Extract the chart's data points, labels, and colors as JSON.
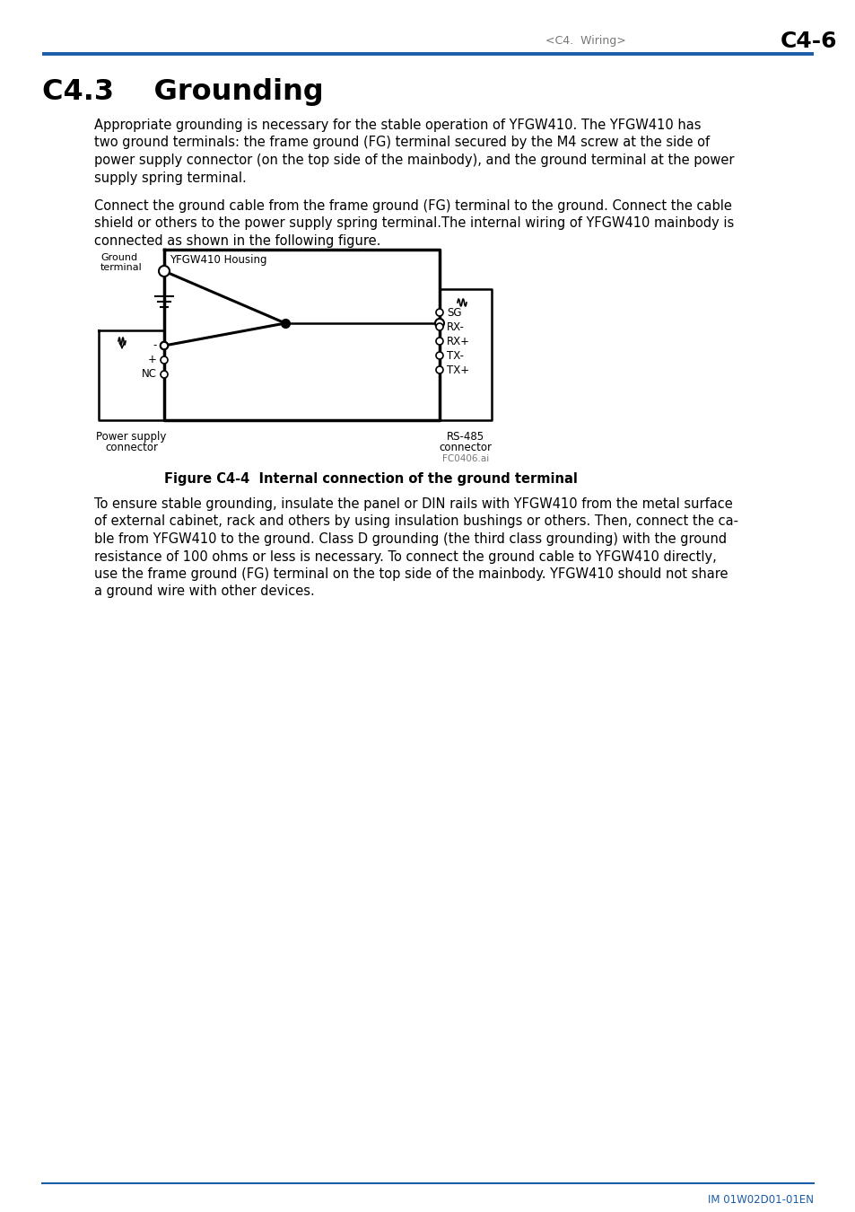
{
  "page_header_left": "<C4.  Wiring>",
  "page_header_right": "C4-6",
  "header_line_color": "#1a5ca8",
  "section_title": "C4.3    Grounding",
  "para1_lines": [
    "Appropriate grounding is necessary for the stable operation of YFGW410. The YFGW410 has",
    "two ground terminals: the frame ground (FG) terminal secured by the M4 screw at the side of",
    "power supply connector (on the top side of the mainbody), and the ground terminal at the power",
    "supply spring terminal."
  ],
  "para2_lines": [
    "Connect the ground cable from the frame ground (FG) terminal to the ground. Connect the cable",
    "shield or others to the power supply spring terminal.The internal wiring of YFGW410 mainbody is",
    "connected as shown in the following figure."
  ],
  "fig_caption": "Figure C4-4  Internal connection of the ground terminal",
  "para3_lines": [
    "To ensure stable grounding, insulate the panel or DIN rails with YFGW410 from the metal surface",
    "of external cabinet, rack and others by using insulation bushings or others. Then, connect the ca-",
    "ble from YFGW410 to the ground. Class D grounding (the third class grounding) with the ground",
    "resistance of 100 ohms or less is necessary. To connect the ground cable to YFGW410 directly,",
    "use the frame ground (FG) terminal on the top side of the mainbody. YFGW410 should not share",
    "a ground wire with other devices."
  ],
  "footer_text": "IM 01W02D01-01EN",
  "bg_color": "#ffffff",
  "text_color": "#000000",
  "header_text_color": "#777777",
  "blue_color": "#1a5ca8",
  "fig_label_ground_terminal": [
    "Ground",
    "terminal"
  ],
  "fig_label_housing": "YFGW410 Housing",
  "fig_label_ps_line1": "Power supply",
  "fig_label_ps_line2": "connector",
  "fig_label_rs_line1": "RS-485",
  "fig_label_rs_line2": "connector",
  "fig_label_fc": "FC0406.ai",
  "rs_terminals": [
    "SG",
    "RX-",
    "RX+",
    "TX-",
    "TX+"
  ],
  "ps_terminals": [
    "-",
    "+",
    "NC"
  ]
}
